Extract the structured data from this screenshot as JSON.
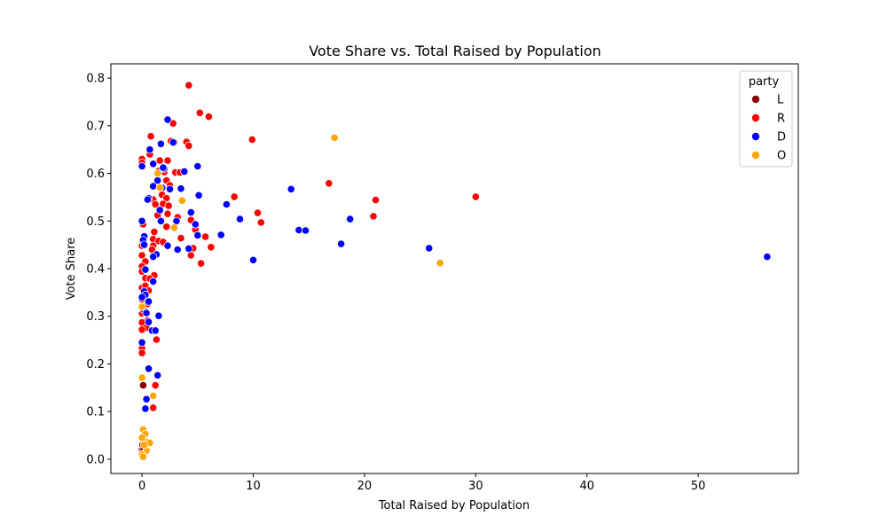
{
  "chart_data": {
    "type": "scatter",
    "title": "Vote Share vs. Total Raised by Population",
    "xlabel": "Total Raised by Population",
    "ylabel": "Vote Share",
    "xlim": [
      -2.8,
      59
    ],
    "ylim": [
      -0.03,
      0.83
    ],
    "x_ticks": [
      0,
      10,
      20,
      30,
      40,
      50
    ],
    "y_ticks": [
      0.0,
      0.1,
      0.2,
      0.3,
      0.4,
      0.5,
      0.6,
      0.7,
      0.8
    ],
    "y_tick_labels": [
      "0.0",
      "0.1",
      "0.2",
      "0.3",
      "0.4",
      "0.5",
      "0.6",
      "0.7",
      "0.8"
    ],
    "grid": false,
    "legend": {
      "title": "party",
      "position": "top-right"
    },
    "series": [
      {
        "name": "L",
        "color": "#8b0000",
        "points": [
          [
            0.1,
            0.155
          ],
          [
            0.0,
            0.02
          ],
          [
            0.05,
            0.03
          ],
          [
            0.1,
            0.045
          ],
          [
            0.15,
            0.02
          ]
        ]
      },
      {
        "name": "R",
        "color": "#ff0000",
        "points": [
          [
            4.2,
            0.785
          ],
          [
            5.2,
            0.727
          ],
          [
            6.0,
            0.719
          ],
          [
            2.8,
            0.705
          ],
          [
            0.8,
            0.678
          ],
          [
            9.9,
            0.671
          ],
          [
            4.0,
            0.666
          ],
          [
            4.2,
            0.658
          ],
          [
            2.9,
            0.665
          ],
          [
            0.0,
            0.63
          ],
          [
            1.6,
            0.627
          ],
          [
            2.3,
            0.627
          ],
          [
            0.0,
            0.622
          ],
          [
            0.7,
            0.64
          ],
          [
            3.0,
            0.602
          ],
          [
            3.4,
            0.602
          ],
          [
            2.0,
            0.603
          ],
          [
            1.5,
            0.605
          ],
          [
            2.2,
            0.585
          ],
          [
            2.5,
            0.575
          ],
          [
            1.8,
            0.555
          ],
          [
            1.0,
            0.545
          ],
          [
            2.2,
            0.548
          ],
          [
            1.9,
            0.536
          ],
          [
            2.4,
            0.532
          ],
          [
            1.6,
            0.52
          ],
          [
            2.3,
            0.515
          ],
          [
            3.2,
            0.508
          ],
          [
            1.4,
            0.512
          ],
          [
            4.4,
            0.502
          ],
          [
            2.2,
            0.488
          ],
          [
            4.8,
            0.482
          ],
          [
            1.1,
            0.477
          ],
          [
            5.7,
            0.467
          ],
          [
            1.0,
            0.462
          ],
          [
            3.5,
            0.464
          ],
          [
            1.5,
            0.458
          ],
          [
            1.9,
            0.456
          ],
          [
            1.0,
            0.448
          ],
          [
            6.2,
            0.445
          ],
          [
            4.6,
            0.443
          ],
          [
            0.0,
            0.448
          ],
          [
            0.0,
            0.428
          ],
          [
            0.3,
            0.415
          ],
          [
            4.4,
            0.428
          ],
          [
            0.0,
            0.405
          ],
          [
            5.3,
            0.411
          ],
          [
            0.0,
            0.394
          ],
          [
            1.1,
            0.386
          ],
          [
            0.3,
            0.38
          ],
          [
            0.7,
            0.379
          ],
          [
            0.0,
            0.36
          ],
          [
            0.3,
            0.364
          ],
          [
            0.6,
            0.354
          ],
          [
            0.0,
            0.336
          ],
          [
            0.5,
            0.326
          ],
          [
            0.0,
            0.306
          ],
          [
            0.5,
            0.291
          ],
          [
            0.0,
            0.287
          ],
          [
            0.4,
            0.276
          ],
          [
            0.0,
            0.272
          ],
          [
            1.3,
            0.251
          ],
          [
            0.0,
            0.233
          ],
          [
            0.0,
            0.223
          ],
          [
            1.2,
            0.155
          ],
          [
            1.0,
            0.108
          ],
          [
            8.3,
            0.551
          ],
          [
            10.4,
            0.517
          ],
          [
            10.7,
            0.497
          ],
          [
            16.8,
            0.579
          ],
          [
            20.8,
            0.51
          ],
          [
            21.0,
            0.544
          ],
          [
            30.0,
            0.551
          ],
          [
            0.1,
            0.493
          ],
          [
            0.9,
            0.44
          ],
          [
            1.2,
            0.535
          ],
          [
            2.6,
            0.668
          ]
        ]
      },
      {
        "name": "D",
        "color": "#0000ff",
        "points": [
          [
            2.3,
            0.713
          ],
          [
            2.8,
            0.665
          ],
          [
            1.7,
            0.662
          ],
          [
            0.7,
            0.65
          ],
          [
            1.0,
            0.62
          ],
          [
            0.0,
            0.615
          ],
          [
            5.0,
            0.615
          ],
          [
            3.8,
            0.604
          ],
          [
            2.0,
            0.61
          ],
          [
            1.4,
            0.585
          ],
          [
            1.8,
            0.57
          ],
          [
            2.5,
            0.567
          ],
          [
            3.5,
            0.568
          ],
          [
            1.0,
            0.573
          ],
          [
            13.4,
            0.567
          ],
          [
            0.6,
            0.548
          ],
          [
            5.1,
            0.554
          ],
          [
            7.6,
            0.535
          ],
          [
            1.6,
            0.523
          ],
          [
            4.4,
            0.518
          ],
          [
            8.8,
            0.504
          ],
          [
            18.7,
            0.504
          ],
          [
            1.7,
            0.5
          ],
          [
            3.1,
            0.5
          ],
          [
            4.8,
            0.493
          ],
          [
            0.0,
            0.5
          ],
          [
            2.3,
            0.448
          ],
          [
            3.2,
            0.44
          ],
          [
            4.2,
            0.442
          ],
          [
            7.1,
            0.471
          ],
          [
            5.0,
            0.47
          ],
          [
            14.1,
            0.481
          ],
          [
            14.7,
            0.48
          ],
          [
            17.9,
            0.452
          ],
          [
            25.8,
            0.443
          ],
          [
            10.0,
            0.418
          ],
          [
            56.2,
            0.425
          ],
          [
            0.2,
            0.468
          ],
          [
            0.1,
            0.46
          ],
          [
            1.3,
            0.43
          ],
          [
            1.0,
            0.425
          ],
          [
            0.2,
            0.45
          ],
          [
            0.3,
            0.398
          ],
          [
            1.0,
            0.373
          ],
          [
            0.2,
            0.352
          ],
          [
            0.3,
            0.345
          ],
          [
            0.0,
            0.34
          ],
          [
            0.6,
            0.331
          ],
          [
            0.1,
            0.315
          ],
          [
            0.4,
            0.307
          ],
          [
            1.5,
            0.301
          ],
          [
            0.6,
            0.288
          ],
          [
            0.9,
            0.27
          ],
          [
            1.2,
            0.27
          ],
          [
            0.0,
            0.245
          ],
          [
            0.6,
            0.19
          ],
          [
            1.4,
            0.176
          ],
          [
            0.4,
            0.126
          ],
          [
            0.3,
            0.106
          ],
          [
            0.5,
            0.545
          ],
          [
            1.9,
            0.612
          ]
        ]
      },
      {
        "name": "O",
        "color": "#ffa500",
        "points": [
          [
            17.3,
            0.675
          ],
          [
            3.6,
            0.543
          ],
          [
            1.4,
            0.6
          ],
          [
            1.6,
            0.57
          ],
          [
            2.9,
            0.486
          ],
          [
            26.8,
            0.412
          ],
          [
            0.0,
            0.32
          ],
          [
            0.0,
            0.171
          ],
          [
            1.0,
            0.133
          ],
          [
            0.1,
            0.062
          ],
          [
            0.3,
            0.053
          ],
          [
            0.2,
            0.04
          ],
          [
            0.5,
            0.036
          ],
          [
            0.7,
            0.034
          ],
          [
            0.4,
            0.018
          ],
          [
            0.0,
            0.01
          ],
          [
            0.1,
            0.005
          ],
          [
            0.2,
            0.03
          ],
          [
            0.0,
            0.045
          ]
        ]
      }
    ]
  }
}
